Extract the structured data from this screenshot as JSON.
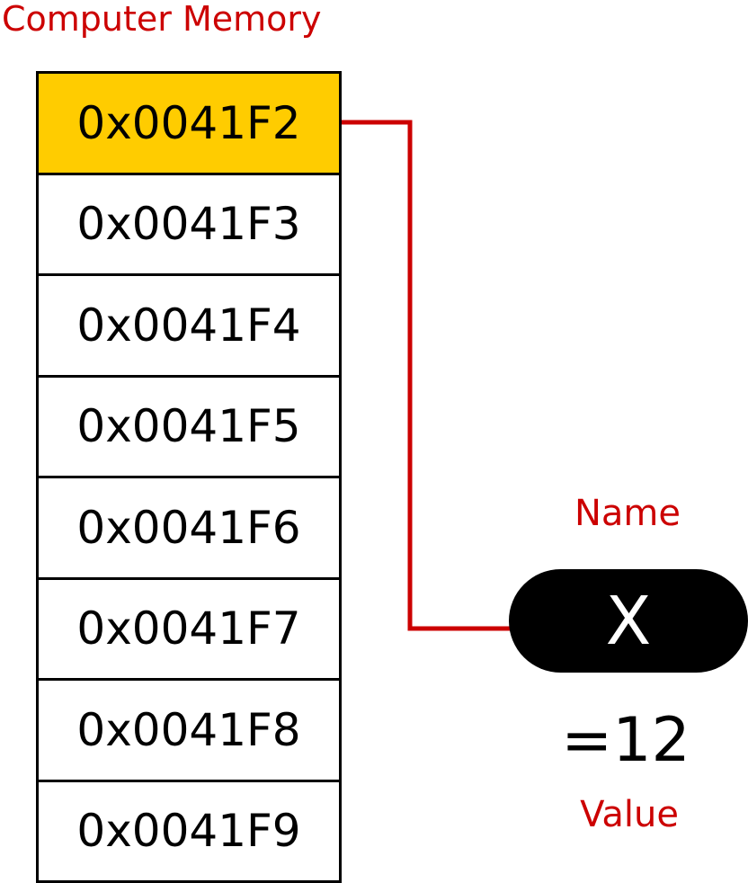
{
  "title": "Computer Memory",
  "memory_cells": [
    {
      "address": "0x0041F2",
      "highlighted": true
    },
    {
      "address": "0x0041F3",
      "highlighted": false
    },
    {
      "address": "0x0041F4",
      "highlighted": false
    },
    {
      "address": "0x0041F5",
      "highlighted": false
    },
    {
      "address": "0x0041F6",
      "highlighted": false
    },
    {
      "address": "0x0041F7",
      "highlighted": false
    },
    {
      "address": "0x0041F8",
      "highlighted": false
    },
    {
      "address": "0x0041F9",
      "highlighted": false
    }
  ],
  "variable": {
    "name_label": "Name",
    "name": "X",
    "value": "=12",
    "value_label": "Value"
  },
  "colors": {
    "accent": "#cc0000",
    "highlight": "#ffcc00",
    "pill": "#000000"
  }
}
